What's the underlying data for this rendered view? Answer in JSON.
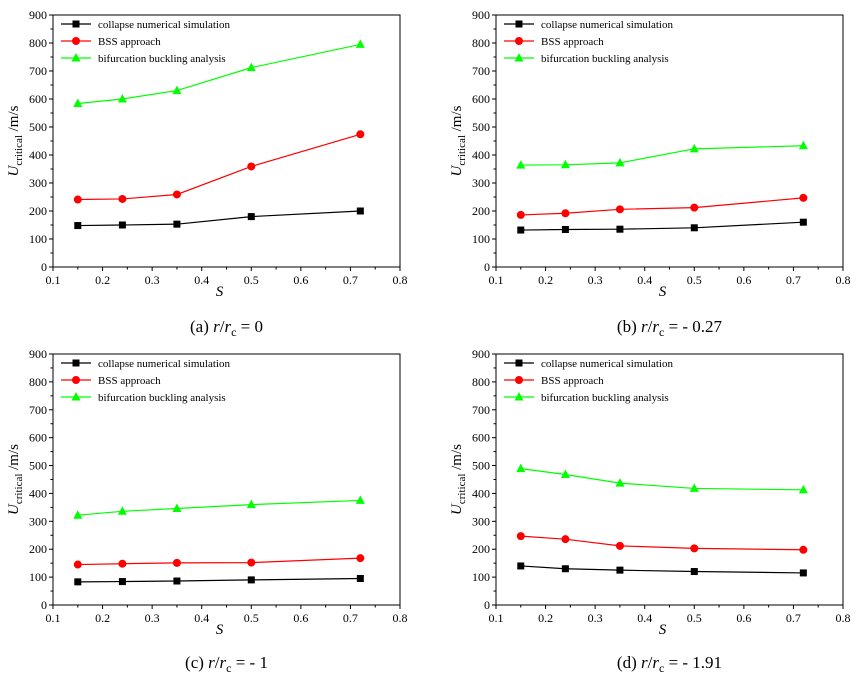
{
  "chart_data": [
    {
      "type": "line",
      "caption": {
        "prefix": "(a) ",
        "var": "r",
        "sep": "/",
        "var2": "r",
        "sub": "c",
        "suffix": " = 0"
      },
      "xlabel": "S",
      "ylabel": {
        "main": "U",
        "sub": "critical",
        "unit": " /m/s"
      },
      "xlim": [
        0.1,
        0.8
      ],
      "ylim": [
        0,
        900
      ],
      "xticks": [
        "0.1",
        "0.2",
        "0.3",
        "0.4",
        "0.5",
        "0.6",
        "0.7",
        "0.8"
      ],
      "yticks": [
        "0",
        "100",
        "200",
        "300",
        "400",
        "500",
        "600",
        "700",
        "800",
        "900"
      ],
      "x": [
        0.15,
        0.24,
        0.35,
        0.5,
        0.72
      ],
      "series": [
        {
          "name": "collapse numerical simulation",
          "color": "#000000",
          "marker": "square",
          "values": [
            148,
            150,
            153,
            180,
            200
          ]
        },
        {
          "name": "BSS approach",
          "color": "#ff0000",
          "marker": "circle",
          "values": [
            241,
            243,
            259,
            359,
            474
          ]
        },
        {
          "name": " bifurcation buckling analysis",
          "color": "#00ff00",
          "marker": "triangle",
          "values": [
            584,
            600,
            630,
            712,
            795
          ]
        }
      ]
    },
    {
      "type": "line",
      "caption": {
        "prefix": "(b) ",
        "var": "r",
        "sep": "/",
        "var2": "r",
        "sub": "c",
        "suffix": " = - 0.27"
      },
      "xlabel": "S",
      "ylabel": {
        "main": "U",
        "sub": "critical",
        "unit": " /m/s"
      },
      "xlim": [
        0.1,
        0.8
      ],
      "ylim": [
        0,
        900
      ],
      "xticks": [
        "0.1",
        "0.2",
        "0.3",
        "0.4",
        "0.5",
        "0.6",
        "0.7",
        "0.8"
      ],
      "yticks": [
        "0",
        "100",
        "200",
        "300",
        "400",
        "500",
        "600",
        "700",
        "800",
        "900"
      ],
      "x": [
        0.15,
        0.24,
        0.35,
        0.5,
        0.72
      ],
      "series": [
        {
          "name": "collapse numerical simulation",
          "color": "#000000",
          "marker": "square",
          "values": [
            132,
            134,
            135,
            140,
            160
          ]
        },
        {
          "name": "BSS approach",
          "color": "#ff0000",
          "marker": "circle",
          "values": [
            186,
            192,
            206,
            212,
            247
          ]
        },
        {
          "name": " bifurcation buckling analysis",
          "color": "#00ff00",
          "marker": "triangle",
          "values": [
            364,
            365,
            372,
            422,
            433
          ]
        }
      ]
    },
    {
      "type": "line",
      "caption": {
        "prefix": "(c) ",
        "var": "r",
        "sep": "/",
        "var2": "r",
        "sub": "c",
        "suffix": " = - 1"
      },
      "xlabel": "S",
      "ylabel": {
        "main": "U",
        "sub": "critical",
        "unit": " /m/s"
      },
      "xlim": [
        0.1,
        0.8
      ],
      "ylim": [
        0,
        900
      ],
      "xticks": [
        "0.1",
        "0.2",
        "0.3",
        "0.4",
        "0.5",
        "0.6",
        "0.7",
        "0.8"
      ],
      "yticks": [
        "0",
        "100",
        "200",
        "300",
        "400",
        "500",
        "600",
        "700",
        "800",
        "900"
      ],
      "x": [
        0.15,
        0.24,
        0.35,
        0.5,
        0.72
      ],
      "series": [
        {
          "name": "collapse numerical simulation",
          "color": "#000000",
          "marker": "square",
          "values": [
            83,
            84,
            86,
            90,
            95
          ]
        },
        {
          "name": "BSS approach",
          "color": "#ff0000",
          "marker": "circle",
          "values": [
            145,
            148,
            151,
            152,
            168
          ]
        },
        {
          "name": " bifurcation buckling analysis",
          "color": "#00ff00",
          "marker": "triangle",
          "values": [
            322,
            336,
            346,
            360,
            375
          ]
        }
      ]
    },
    {
      "type": "line",
      "caption": {
        "prefix": "(d) ",
        "var": "r",
        "sep": "/",
        "var2": "r",
        "sub": "c",
        "suffix": " = - 1.91"
      },
      "xlabel": "S",
      "ylabel": {
        "main": "U",
        "sub": "critical",
        "unit": " /m/s"
      },
      "xlim": [
        0.1,
        0.8
      ],
      "ylim": [
        0,
        900
      ],
      "xticks": [
        "0.1",
        "0.2",
        "0.3",
        "0.4",
        "0.5",
        "0.6",
        "0.7",
        "0.8"
      ],
      "yticks": [
        "0",
        "100",
        "200",
        "300",
        "400",
        "500",
        "600",
        "700",
        "800",
        "900"
      ],
      "x": [
        0.15,
        0.24,
        0.35,
        0.5,
        0.72
      ],
      "series": [
        {
          "name": "collapse numerical simulation",
          "color": "#000000",
          "marker": "square",
          "values": [
            140,
            130,
            125,
            120,
            115
          ]
        },
        {
          "name": "BSS approach",
          "color": "#ff0000",
          "marker": "circle",
          "values": [
            247,
            236,
            212,
            203,
            198
          ]
        },
        {
          "name": " bifurcation buckling analysis",
          "color": "#00ff00",
          "marker": "triangle",
          "values": [
            489,
            468,
            437,
            418,
            413
          ]
        }
      ]
    }
  ]
}
